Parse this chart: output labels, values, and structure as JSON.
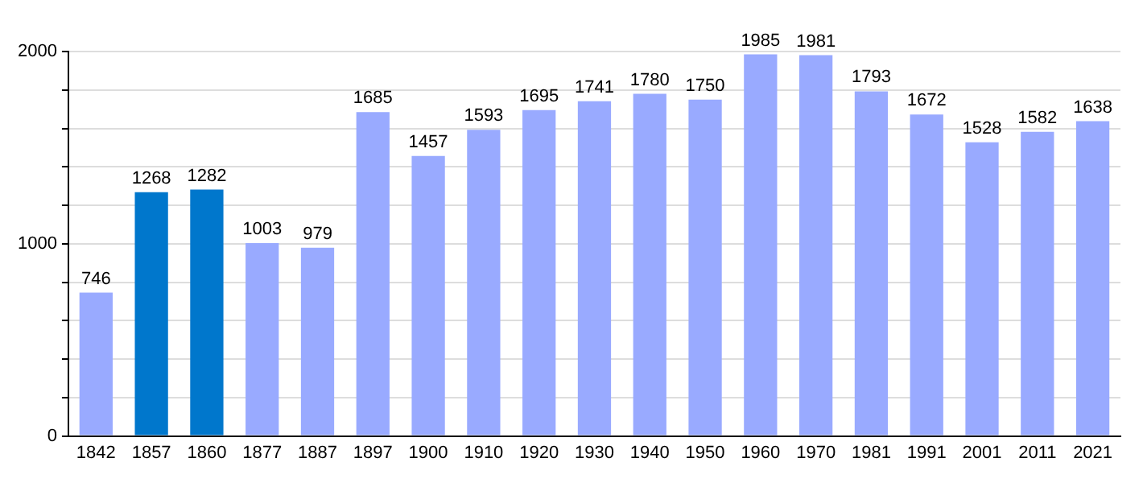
{
  "chart_data": {
    "type": "bar",
    "categories": [
      "1842",
      "1857",
      "1860",
      "1877",
      "1887",
      "1897",
      "1900",
      "1910",
      "1920",
      "1930",
      "1940",
      "1950",
      "1960",
      "1970",
      "1981",
      "1991",
      "2001",
      "2011",
      "2021"
    ],
    "values": [
      746,
      1268,
      1282,
      1003,
      979,
      1685,
      1457,
      1593,
      1695,
      1741,
      1780,
      1750,
      1985,
      1981,
      1793,
      1672,
      1528,
      1582,
      1638
    ],
    "colors": [
      "#99aaff",
      "#0077cc",
      "#0077cc",
      "#99aaff",
      "#99aaff",
      "#99aaff",
      "#99aaff",
      "#99aaff",
      "#99aaff",
      "#99aaff",
      "#99aaff",
      "#99aaff",
      "#99aaff",
      "#99aaff",
      "#99aaff",
      "#99aaff",
      "#99aaff",
      "#99aaff",
      "#99aaff"
    ],
    "ylim": [
      0,
      2000
    ],
    "yticks": [
      0,
      {
        "value": 200,
        "label": null
      },
      {
        "value": 400,
        "label": null
      },
      {
        "value": 600,
        "label": null
      },
      {
        "value": 800,
        "label": null
      },
      1000,
      {
        "value": 1200,
        "label": null
      },
      {
        "value": 1400,
        "label": null
      },
      {
        "value": 1600,
        "label": null
      },
      {
        "value": 1800,
        "label": null
      },
      2000
    ],
    "grid": "y",
    "data_labels": true,
    "legend": false
  }
}
